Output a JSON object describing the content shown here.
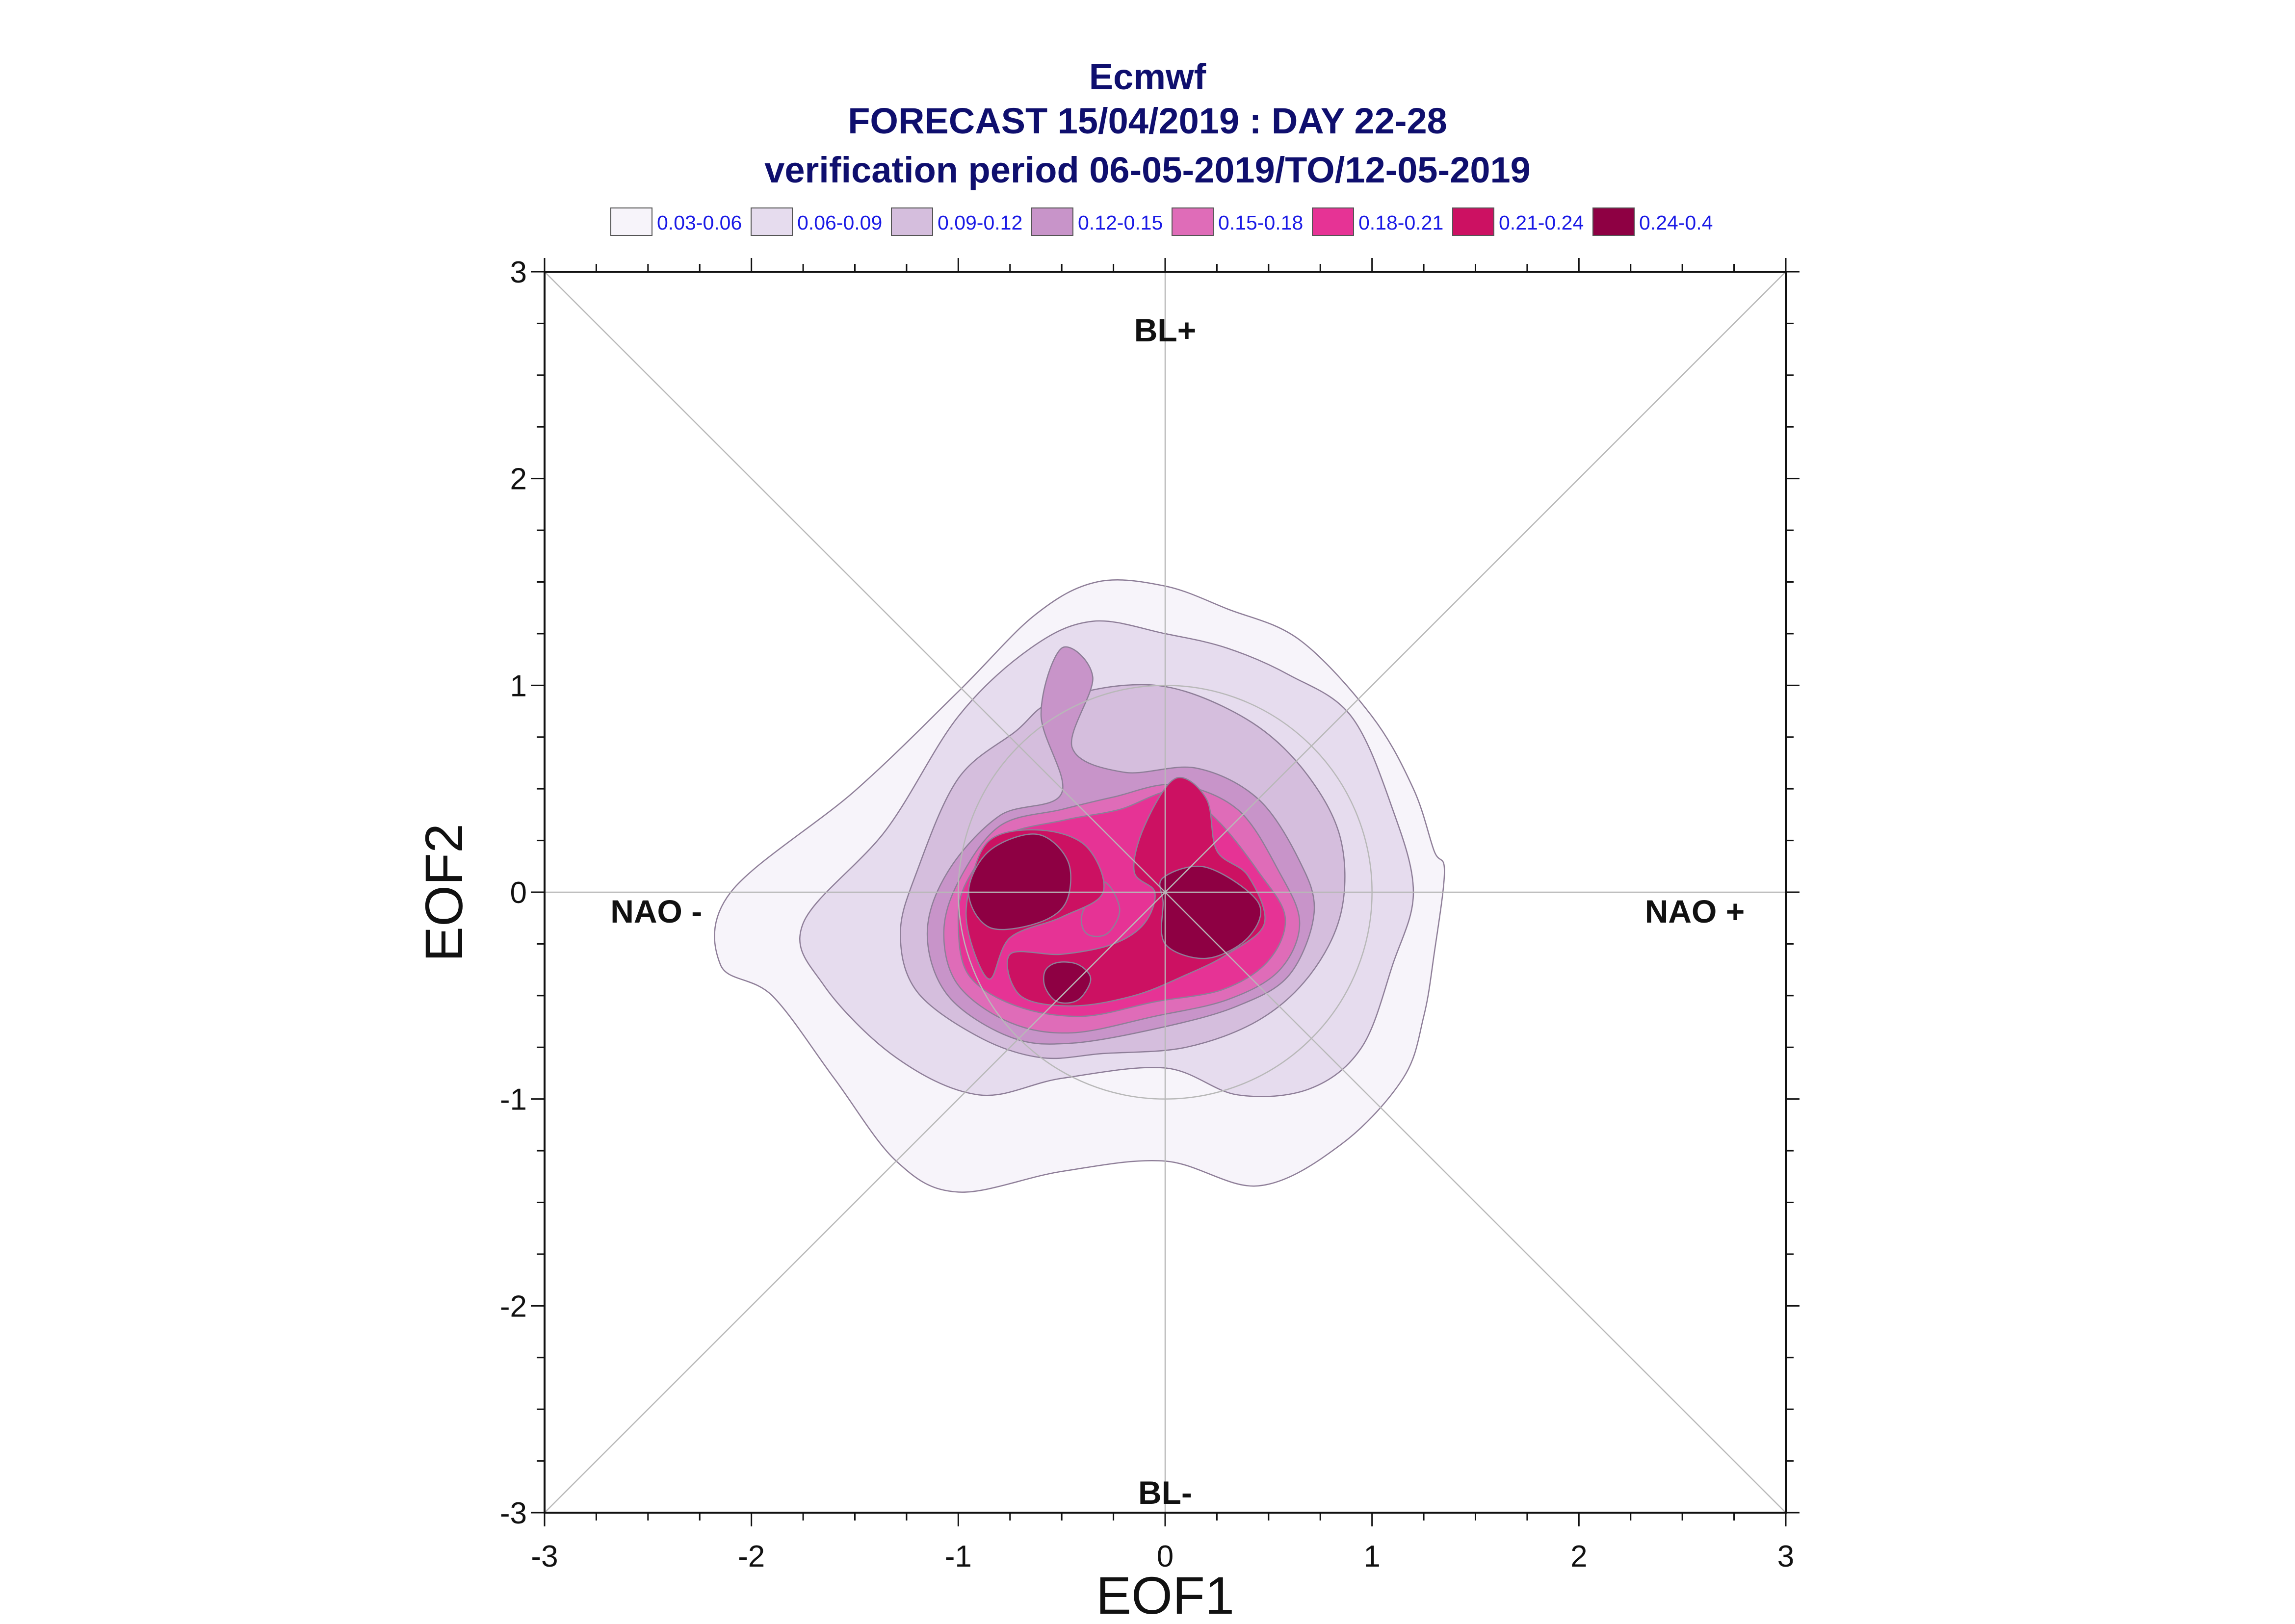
{
  "chart_data": {
    "type": "heatmap",
    "title_lines": [
      "Ecmwf",
      "FORECAST 15/04/2019 : DAY 22-28",
      "verification period 06-05-2019/TO/12-05-2019"
    ],
    "xlabel": "EOF1",
    "ylabel": "EOF2",
    "xlim": [
      -3,
      3
    ],
    "ylim": [
      -3,
      3
    ],
    "x_ticks": [
      "-3",
      "-2",
      "-1",
      "0",
      "1",
      "2",
      "3"
    ],
    "y_ticks": [
      "-3",
      "-2",
      "-1",
      "0",
      "1",
      "2",
      "3"
    ],
    "grid": false,
    "legend_position": "top",
    "legend": [
      {
        "label": "0.03-0.06",
        "color": "#f7f4fa"
      },
      {
        "label": "0.06-0.09",
        "color": "#e6dcee"
      },
      {
        "label": "0.09-0.12",
        "color": "#d5bedd"
      },
      {
        "label": "0.12-0.15",
        "color": "#c894c9"
      },
      {
        "label": "0.15-0.18",
        "color": "#df6cb8"
      },
      {
        "label": "0.18-0.21",
        "color": "#e63395"
      },
      {
        "label": "0.21-0.24",
        "color": "#cc1162"
      },
      {
        "label": "0.24-0.4",
        "color": "#8e0043"
      }
    ],
    "regime_labels": [
      {
        "text": "BL+",
        "x": 0,
        "y": 2.72
      },
      {
        "text": "BL-",
        "x": 0,
        "y": -2.9
      },
      {
        "text": "NAO -",
        "x": -2.46,
        "y": -0.09
      },
      {
        "text": "NAO +",
        "x": 2.56,
        "y": -0.09
      }
    ],
    "reference_circle_radius": 1.0,
    "contour_levels": [
      {
        "range": "0.03-0.06",
        "polygons": [
          [
            [
              -1.5,
              0.49
            ],
            [
              -1.0,
              0.97
            ],
            [
              -0.63,
              1.34
            ],
            [
              -0.33,
              1.5
            ],
            [
              0,
              1.48
            ],
            [
              0.3,
              1.37
            ],
            [
              0.65,
              1.22
            ],
            [
              1.0,
              0.85
            ],
            [
              1.2,
              0.5
            ],
            [
              1.3,
              0.2
            ],
            [
              1.35,
              0.1
            ],
            [
              1.3,
              -0.3
            ],
            [
              1.25,
              -0.6
            ],
            [
              1.15,
              -0.9
            ],
            [
              0.85,
              -1.22
            ],
            [
              0.45,
              -1.42
            ],
            [
              0,
              -1.3
            ],
            [
              -0.5,
              -1.35
            ],
            [
              -1.0,
              -1.45
            ],
            [
              -1.3,
              -1.3
            ],
            [
              -1.6,
              -0.9
            ],
            [
              -1.9,
              -0.5
            ],
            [
              -2.15,
              -0.35
            ],
            [
              -2.1,
              0.0
            ]
          ]
        ]
      },
      {
        "range": "0.06-0.09",
        "polygons": [
          [
            [
              -1.35,
              0.3
            ],
            [
              -1.0,
              0.85
            ],
            [
              -0.65,
              1.18
            ],
            [
              -0.35,
              1.31
            ],
            [
              0,
              1.25
            ],
            [
              0.3,
              1.18
            ],
            [
              0.6,
              1.05
            ],
            [
              0.9,
              0.85
            ],
            [
              1.1,
              0.4
            ],
            [
              1.2,
              0.0
            ],
            [
              1.1,
              -0.35
            ],
            [
              0.95,
              -0.75
            ],
            [
              0.7,
              -0.95
            ],
            [
              0.35,
              -0.98
            ],
            [
              0,
              -0.85
            ],
            [
              -0.5,
              -0.9
            ],
            [
              -0.9,
              -0.98
            ],
            [
              -1.3,
              -0.8
            ],
            [
              -1.65,
              -0.45
            ],
            [
              -1.75,
              -0.15
            ]
          ]
        ]
      },
      {
        "range": "0.09-0.12",
        "polygons": [
          [
            [
              -1.2,
              0.1
            ],
            [
              -1.0,
              0.55
            ],
            [
              -0.72,
              0.78
            ],
            [
              -0.55,
              0.92
            ],
            [
              -0.2,
              1.0
            ],
            [
              0.1,
              0.97
            ],
            [
              0.45,
              0.8
            ],
            [
              0.7,
              0.55
            ],
            [
              0.85,
              0.25
            ],
            [
              0.85,
              -0.1
            ],
            [
              0.7,
              -0.4
            ],
            [
              0.45,
              -0.62
            ],
            [
              0.1,
              -0.75
            ],
            [
              -0.3,
              -0.78
            ],
            [
              -0.6,
              -0.8
            ],
            [
              -0.9,
              -0.7
            ],
            [
              -1.2,
              -0.48
            ],
            [
              -1.28,
              -0.2
            ]
          ]
        ]
      },
      {
        "range": "0.12-0.15",
        "polygons": [
          [
            [
              -1.05,
              0.1
            ],
            [
              -0.8,
              0.37
            ],
            [
              -0.5,
              0.48
            ],
            [
              -0.6,
              0.86
            ],
            [
              -0.5,
              1.18
            ],
            [
              -0.35,
              1.04
            ],
            [
              -0.45,
              0.7
            ],
            [
              -0.2,
              0.58
            ],
            [
              0.15,
              0.6
            ],
            [
              0.45,
              0.45
            ],
            [
              0.65,
              0.15
            ],
            [
              0.72,
              -0.1
            ],
            [
              0.6,
              -0.4
            ],
            [
              0.35,
              -0.55
            ],
            [
              0,
              -0.65
            ],
            [
              -0.45,
              -0.73
            ],
            [
              -0.75,
              -0.7
            ],
            [
              -1.05,
              -0.5
            ],
            [
              -1.15,
              -0.2
            ]
          ]
        ]
      },
      {
        "range": "0.15-0.18",
        "polygons": [
          [
            [
              -1.0,
              0.05
            ],
            [
              -0.8,
              0.32
            ],
            [
              -0.5,
              0.4
            ],
            [
              -0.25,
              0.46
            ],
            [
              0.05,
              0.52
            ],
            [
              0.35,
              0.4
            ],
            [
              0.55,
              0.1
            ],
            [
              0.65,
              -0.15
            ],
            [
              0.55,
              -0.38
            ],
            [
              0.3,
              -0.52
            ],
            [
              -0.05,
              -0.6
            ],
            [
              -0.45,
              -0.68
            ],
            [
              -0.75,
              -0.63
            ],
            [
              -1.0,
              -0.45
            ],
            [
              -1.07,
              -0.2
            ]
          ]
        ]
      },
      {
        "range": "0.18-0.21",
        "polygons": [
          [
            [
              -0.96,
              0.05
            ],
            [
              -0.78,
              0.27
            ],
            [
              -0.48,
              0.35
            ],
            [
              -0.22,
              0.4
            ],
            [
              0.05,
              0.49
            ],
            [
              0.25,
              0.35
            ],
            [
              0.45,
              0.1
            ],
            [
              0.58,
              -0.12
            ],
            [
              0.5,
              -0.33
            ],
            [
              0.28,
              -0.47
            ],
            [
              -0.05,
              -0.53
            ],
            [
              -0.4,
              -0.6
            ],
            [
              -0.72,
              -0.55
            ],
            [
              -0.95,
              -0.4
            ],
            [
              -1.0,
              -0.15
            ]
          ],
          [
            [
              -0.4,
              -0.1
            ],
            [
              -0.3,
              0.05
            ],
            [
              -0.22,
              -0.08
            ],
            [
              -0.28,
              -0.2
            ],
            [
              -0.38,
              -0.2
            ]
          ]
        ]
      },
      {
        "range": "0.21-0.24",
        "polygons": [
          [
            [
              -0.95,
              0.0
            ],
            [
              -0.85,
              0.25
            ],
            [
              -0.6,
              0.3
            ],
            [
              -0.38,
              0.22
            ],
            [
              -0.3,
              0.0
            ],
            [
              -0.5,
              -0.12
            ],
            [
              -0.75,
              -0.22
            ],
            [
              -0.85,
              -0.42
            ],
            [
              -0.95,
              -0.2
            ]
          ],
          [
            [
              -0.15,
              0.1
            ],
            [
              -0.1,
              0.32
            ],
            [
              0.05,
              0.55
            ],
            [
              0.2,
              0.45
            ],
            [
              0.25,
              0.2
            ],
            [
              0.4,
              0.08
            ],
            [
              0.48,
              -0.15
            ],
            [
              0.3,
              -0.3
            ],
            [
              0.1,
              -0.4
            ],
            [
              -0.15,
              -0.5
            ],
            [
              -0.45,
              -0.55
            ],
            [
              -0.7,
              -0.5
            ],
            [
              -0.75,
              -0.3
            ],
            [
              -0.5,
              -0.3
            ],
            [
              -0.25,
              -0.25
            ],
            [
              -0.1,
              -0.15
            ],
            [
              -0.05,
              0.0
            ]
          ]
        ]
      },
      {
        "range": "0.24-0.4",
        "polygons": [
          [
            [
              -0.95,
              0.0
            ],
            [
              -0.85,
              0.2
            ],
            [
              -0.62,
              0.28
            ],
            [
              -0.47,
              0.15
            ],
            [
              -0.48,
              -0.05
            ],
            [
              -0.62,
              -0.15
            ],
            [
              -0.85,
              -0.17
            ]
          ],
          [
            [
              -0.01,
              0.07
            ],
            [
              0.2,
              0.12
            ],
            [
              0.45,
              -0.05
            ],
            [
              0.4,
              -0.22
            ],
            [
              0.2,
              -0.32
            ],
            [
              0.0,
              -0.25
            ],
            [
              -0.01,
              -0.05
            ]
          ],
          [
            [
              -0.58,
              -0.38
            ],
            [
              -0.52,
              -0.34
            ],
            [
              -0.42,
              -0.35
            ],
            [
              -0.36,
              -0.42
            ],
            [
              -0.42,
              -0.52
            ],
            [
              -0.52,
              -0.53
            ],
            [
              -0.58,
              -0.46
            ]
          ]
        ]
      }
    ]
  }
}
